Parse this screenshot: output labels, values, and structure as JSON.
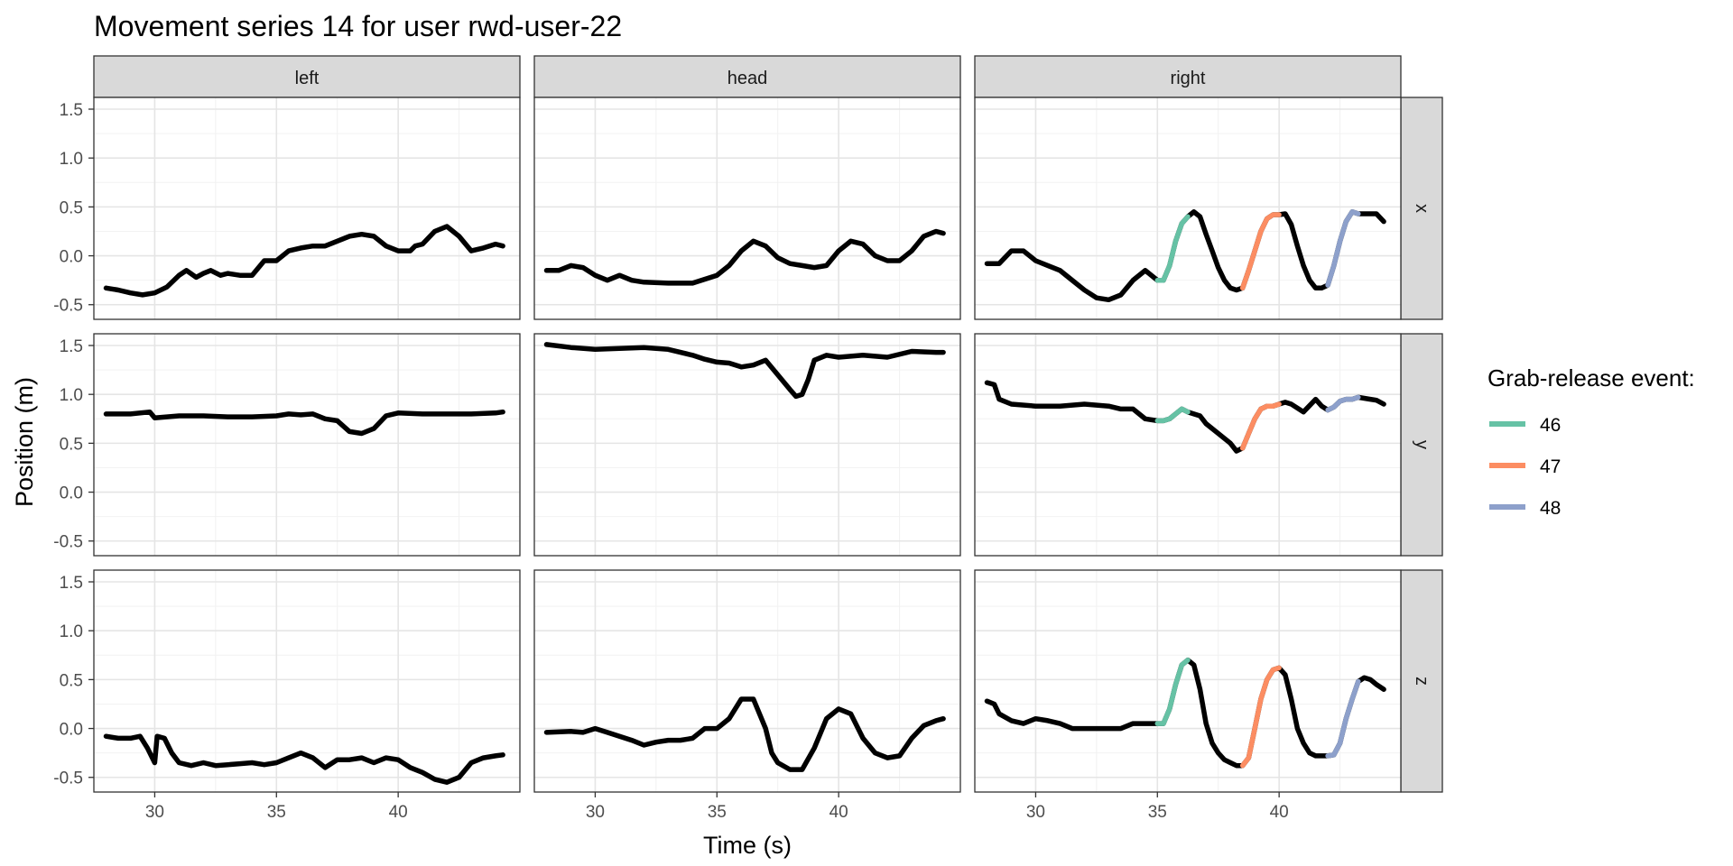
{
  "chart_data": {
    "type": "line",
    "title": "Movement series 14 for user rwd-user-22",
    "xlabel": "Time (s)",
    "ylabel": "Position (m)",
    "xlim": [
      27.5,
      45
    ],
    "ylim": [
      -0.65,
      1.62
    ],
    "xticks": [
      30,
      35,
      40
    ],
    "yticks": [
      -0.5,
      0.0,
      0.5,
      1.0,
      1.5
    ],
    "ytick_labels": [
      "-0.5",
      "0.0",
      "0.5",
      "1.0",
      "1.5"
    ],
    "grid": true,
    "column_facets": [
      "left",
      "head",
      "right"
    ],
    "row_facets": [
      "x",
      "y",
      "z"
    ],
    "legend": {
      "title": "Grab-release event:",
      "position": "right",
      "entries": [
        {
          "label": "46",
          "color": "#66C2A5"
        },
        {
          "label": "47",
          "color": "#FC8D62"
        },
        {
          "label": "48",
          "color": "#8DA0CB"
        }
      ]
    },
    "panels": [
      {
        "column": "left",
        "row": "x",
        "x": [
          28,
          28.5,
          29,
          29.5,
          30,
          30.5,
          31,
          31.3,
          31.7,
          32,
          32.3,
          32.7,
          33,
          33.5,
          34,
          34.5,
          35,
          35.5,
          36,
          36.5,
          37,
          37.5,
          38,
          38.5,
          39,
          39.5,
          40,
          40.5,
          40.7,
          41,
          41.5,
          42,
          42.5,
          43,
          43.5,
          44,
          44.3
        ],
        "y": [
          -0.33,
          -0.35,
          -0.38,
          -0.4,
          -0.38,
          -0.32,
          -0.2,
          -0.15,
          -0.22,
          -0.18,
          -0.15,
          -0.2,
          -0.18,
          -0.2,
          -0.2,
          -0.05,
          -0.05,
          0.05,
          0.08,
          0.1,
          0.1,
          0.15,
          0.2,
          0.22,
          0.2,
          0.1,
          0.05,
          0.05,
          0.1,
          0.12,
          0.25,
          0.3,
          0.2,
          0.05,
          0.08,
          0.12,
          0.1
        ]
      },
      {
        "column": "head",
        "row": "x",
        "x": [
          28,
          28.5,
          29,
          29.5,
          30,
          30.5,
          31,
          31.5,
          32,
          33,
          34,
          35,
          35.5,
          36,
          36.5,
          37,
          37.5,
          38,
          38.5,
          39,
          39.5,
          40,
          40.5,
          41,
          41.5,
          42,
          42.5,
          43,
          43.5,
          44,
          44.3
        ],
        "y": [
          -0.15,
          -0.15,
          -0.1,
          -0.12,
          -0.2,
          -0.25,
          -0.2,
          -0.25,
          -0.27,
          -0.28,
          -0.28,
          -0.2,
          -0.1,
          0.05,
          0.15,
          0.1,
          -0.02,
          -0.08,
          -0.1,
          -0.12,
          -0.1,
          0.05,
          0.15,
          0.12,
          0,
          -0.05,
          -0.05,
          0.05,
          0.2,
          0.25,
          0.23
        ]
      },
      {
        "column": "right",
        "row": "x",
        "x": [
          28,
          28.5,
          29,
          29.5,
          30,
          30.5,
          31,
          31.5,
          32,
          32.5,
          33,
          33.5,
          34,
          34.5,
          35,
          35.25,
          35.5,
          35.75,
          36,
          36.25,
          36.5,
          36.75,
          37,
          37.25,
          37.5,
          37.75,
          38,
          38.25,
          38.5,
          38.75,
          39,
          39.25,
          39.5,
          39.75,
          40,
          40.25,
          40.5,
          40.75,
          41,
          41.25,
          41.5,
          41.75,
          42,
          42.25,
          42.5,
          42.75,
          43,
          43.25,
          43.5,
          43.75,
          44,
          44.3
        ],
        "y": [
          -0.08,
          -0.08,
          0.05,
          0.05,
          -0.05,
          -0.1,
          -0.15,
          -0.25,
          -0.35,
          -0.43,
          -0.45,
          -0.4,
          -0.25,
          -0.15,
          -0.25,
          -0.25,
          -0.1,
          0.15,
          0.33,
          0.4,
          0.45,
          0.4,
          0.22,
          0.05,
          -0.12,
          -0.25,
          -0.33,
          -0.35,
          -0.33,
          -0.15,
          0.05,
          0.25,
          0.38,
          0.42,
          0.42,
          0.43,
          0.32,
          0.1,
          -0.1,
          -0.25,
          -0.33,
          -0.33,
          -0.3,
          -0.1,
          0.15,
          0.35,
          0.45,
          0.43,
          0.43,
          0.43,
          0.43,
          0.35
        ]
      },
      {
        "column": "left",
        "row": "y",
        "x": [
          28,
          29,
          29.8,
          30,
          30.5,
          31,
          32,
          33,
          34,
          35,
          35.5,
          36,
          36.5,
          37,
          37.5,
          38,
          38.5,
          39,
          39.5,
          40,
          41,
          42,
          43,
          44,
          44.3
        ],
        "y": [
          0.8,
          0.8,
          0.82,
          0.76,
          0.77,
          0.78,
          0.78,
          0.77,
          0.77,
          0.78,
          0.8,
          0.79,
          0.8,
          0.75,
          0.73,
          0.62,
          0.6,
          0.65,
          0.78,
          0.81,
          0.8,
          0.8,
          0.8,
          0.81,
          0.82
        ]
      },
      {
        "column": "head",
        "row": "y",
        "x": [
          28,
          29,
          30,
          31,
          32,
          33,
          34,
          34.5,
          35,
          35.5,
          36,
          36.5,
          37,
          37.5,
          38,
          38.25,
          38.5,
          38.75,
          39,
          39.5,
          40,
          41,
          42,
          43,
          44,
          44.3
        ],
        "y": [
          1.51,
          1.48,
          1.46,
          1.47,
          1.48,
          1.46,
          1.4,
          1.36,
          1.33,
          1.32,
          1.28,
          1.3,
          1.35,
          1.2,
          1.05,
          0.98,
          1.0,
          1.15,
          1.35,
          1.4,
          1.38,
          1.4,
          1.38,
          1.44,
          1.43,
          1.43
        ]
      },
      {
        "column": "right",
        "row": "y",
        "x": [
          28,
          28.3,
          28.5,
          29,
          30,
          31,
          32,
          33,
          33.5,
          34,
          34.5,
          35,
          35.25,
          35.5,
          35.75,
          36,
          36.25,
          36.5,
          36.75,
          37,
          37.5,
          38,
          38.25,
          38.5,
          38.75,
          39,
          39.25,
          39.5,
          39.75,
          40,
          40.25,
          40.5,
          41,
          41.5,
          41.75,
          42,
          42.25,
          42.5,
          42.75,
          43,
          43.25,
          43.5,
          43.75,
          44,
          44.3
        ],
        "y": [
          1.12,
          1.1,
          0.95,
          0.9,
          0.88,
          0.88,
          0.9,
          0.88,
          0.85,
          0.85,
          0.75,
          0.73,
          0.73,
          0.75,
          0.8,
          0.85,
          0.82,
          0.8,
          0.78,
          0.7,
          0.6,
          0.5,
          0.42,
          0.45,
          0.6,
          0.75,
          0.85,
          0.88,
          0.88,
          0.9,
          0.92,
          0.9,
          0.82,
          0.95,
          0.88,
          0.84,
          0.87,
          0.93,
          0.95,
          0.95,
          0.97,
          0.96,
          0.95,
          0.94,
          0.9
        ]
      },
      {
        "column": "left",
        "row": "z",
        "x": [
          28,
          28.5,
          29,
          29.4,
          29.7,
          30,
          30.1,
          30.4,
          30.7,
          31,
          31.5,
          32,
          32.5,
          33,
          33.5,
          34,
          34.5,
          35,
          35.5,
          36,
          36.5,
          37,
          37.5,
          38,
          38.5,
          39,
          39.5,
          40,
          40.5,
          41,
          41.5,
          42,
          42.5,
          43,
          43.5,
          44,
          44.3
        ],
        "y": [
          -0.08,
          -0.1,
          -0.1,
          -0.08,
          -0.2,
          -0.35,
          -0.08,
          -0.1,
          -0.25,
          -0.35,
          -0.38,
          -0.35,
          -0.38,
          -0.37,
          -0.36,
          -0.35,
          -0.37,
          -0.35,
          -0.3,
          -0.25,
          -0.3,
          -0.4,
          -0.32,
          -0.32,
          -0.3,
          -0.35,
          -0.3,
          -0.32,
          -0.4,
          -0.45,
          -0.52,
          -0.55,
          -0.5,
          -0.35,
          -0.3,
          -0.28,
          -0.27
        ]
      },
      {
        "column": "head",
        "row": "z",
        "x": [
          28,
          29,
          29.5,
          30,
          30.5,
          31,
          31.5,
          32,
          32.5,
          33,
          33.5,
          34,
          34.5,
          35,
          35.5,
          36,
          36.5,
          37,
          37.25,
          37.5,
          38,
          38.5,
          39,
          39.5,
          40,
          40.5,
          41,
          41.5,
          42,
          42.5,
          43,
          43.5,
          44,
          44.3
        ],
        "y": [
          -0.04,
          -0.03,
          -0.04,
          0.0,
          -0.04,
          -0.08,
          -0.12,
          -0.17,
          -0.14,
          -0.12,
          -0.12,
          -0.1,
          0.0,
          0.0,
          0.1,
          0.3,
          0.3,
          0.0,
          -0.25,
          -0.35,
          -0.42,
          -0.42,
          -0.2,
          0.1,
          0.2,
          0.15,
          -0.1,
          -0.25,
          -0.3,
          -0.28,
          -0.1,
          0.03,
          0.08,
          0.1
        ]
      },
      {
        "column": "right",
        "row": "z",
        "x": [
          28,
          28.3,
          28.5,
          29,
          29.5,
          30,
          30.5,
          31,
          31.5,
          32,
          32.5,
          33,
          33.5,
          34,
          34.5,
          35,
          35.25,
          35.5,
          35.75,
          36,
          36.25,
          36.5,
          36.75,
          37,
          37.25,
          37.5,
          37.75,
          38,
          38.25,
          38.5,
          38.75,
          39,
          39.25,
          39.5,
          39.75,
          40,
          40.25,
          40.5,
          40.75,
          41,
          41.25,
          41.5,
          41.75,
          42,
          42.25,
          42.5,
          42.75,
          43,
          43.25,
          43.5,
          43.75,
          44,
          44.3
        ],
        "y": [
          0.28,
          0.25,
          0.15,
          0.08,
          0.05,
          0.1,
          0.08,
          0.05,
          0.0,
          0.0,
          0.0,
          0.0,
          0.0,
          0.05,
          0.05,
          0.05,
          0.05,
          0.2,
          0.45,
          0.65,
          0.7,
          0.65,
          0.4,
          0.05,
          -0.15,
          -0.25,
          -0.32,
          -0.35,
          -0.38,
          -0.38,
          -0.3,
          0.0,
          0.3,
          0.5,
          0.6,
          0.62,
          0.55,
          0.3,
          0.0,
          -0.15,
          -0.25,
          -0.28,
          -0.28,
          -0.28,
          -0.27,
          -0.15,
          0.1,
          0.3,
          0.48,
          0.52,
          0.5,
          0.45,
          0.4
        ]
      }
    ],
    "highlight_segments": [
      {
        "event": "46",
        "x_range": [
          35.0,
          36.25
        ]
      },
      {
        "event": "47",
        "x_range": [
          38.5,
          40.0
        ]
      },
      {
        "event": "48",
        "x_range": [
          42.0,
          43.25
        ]
      }
    ]
  }
}
